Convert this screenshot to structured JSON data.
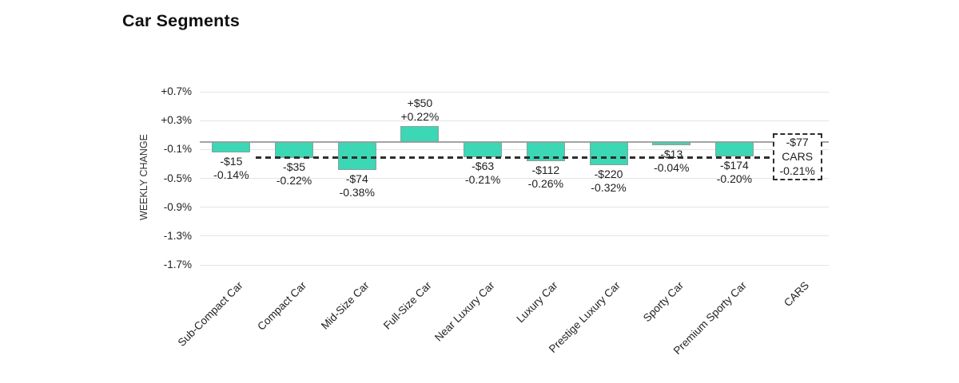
{
  "chart_data": {
    "type": "bar",
    "title": "Car Segments",
    "ylabel": "WEEKLY CHANGE",
    "xlabel": "",
    "ylim": [
      -1.7,
      0.7
    ],
    "grid": true,
    "legend": "none",
    "yticks": [
      {
        "value": 0.7,
        "label": "+0.7%"
      },
      {
        "value": 0.3,
        "label": "+0.3%"
      },
      {
        "value": -0.1,
        "label": "-0.1%"
      },
      {
        "value": -0.5,
        "label": "-0.5%"
      },
      {
        "value": -0.9,
        "label": "-0.9%"
      },
      {
        "value": -1.3,
        "label": "-1.3%"
      },
      {
        "value": -1.7,
        "label": "-1.7%"
      }
    ],
    "categories": [
      "Sub-Compact Car",
      "Compact Car",
      "Mid-Size Car",
      "Full-Size Car",
      "Near Luxury Car",
      "Luxury Car",
      "Prestige Luxury Car",
      "Sporty Car",
      "Premium Sporty Car",
      "CARS"
    ],
    "bars": [
      {
        "category": "Sub-Compact Car",
        "dollar": "-$15",
        "percent": "-0.14%",
        "value": -0.14
      },
      {
        "category": "Compact Car",
        "dollar": "-$35",
        "percent": "-0.22%",
        "value": -0.22
      },
      {
        "category": "Mid-Size Car",
        "dollar": "-$74",
        "percent": "-0.38%",
        "value": -0.38
      },
      {
        "category": "Full-Size Car",
        "dollar": "+$50",
        "percent": "+0.22%",
        "value": 0.22
      },
      {
        "category": "Near Luxury Car",
        "dollar": "-$63",
        "percent": "-0.21%",
        "value": -0.21
      },
      {
        "category": "Luxury Car",
        "dollar": "-$112",
        "percent": "-0.26%",
        "value": -0.26
      },
      {
        "category": "Prestige Luxury Car",
        "dollar": "-$220",
        "percent": "-0.32%",
        "value": -0.32
      },
      {
        "category": "Sporty Car",
        "dollar": "-$13",
        "percent": "-0.04%",
        "value": -0.04
      },
      {
        "category": "Premium Sporty Car",
        "dollar": "-$174",
        "percent": "-0.20%",
        "value": -0.2
      }
    ],
    "summary": {
      "category": "CARS",
      "dollar": "-$77",
      "label": "CARS",
      "percent": "-0.21%",
      "value": -0.21,
      "style": "dashed-box"
    },
    "average_line": {
      "value": -0.21,
      "style": "dashed"
    },
    "colors": {
      "bar_fill": "#3CD7B4",
      "bar_border": "#87a29a",
      "gridline": "#e4e4e4",
      "zero_line": "#a3a3a3",
      "dashed_line": "#2e2e2e",
      "text": "#1f1f1f",
      "title_text": "#111111"
    }
  }
}
